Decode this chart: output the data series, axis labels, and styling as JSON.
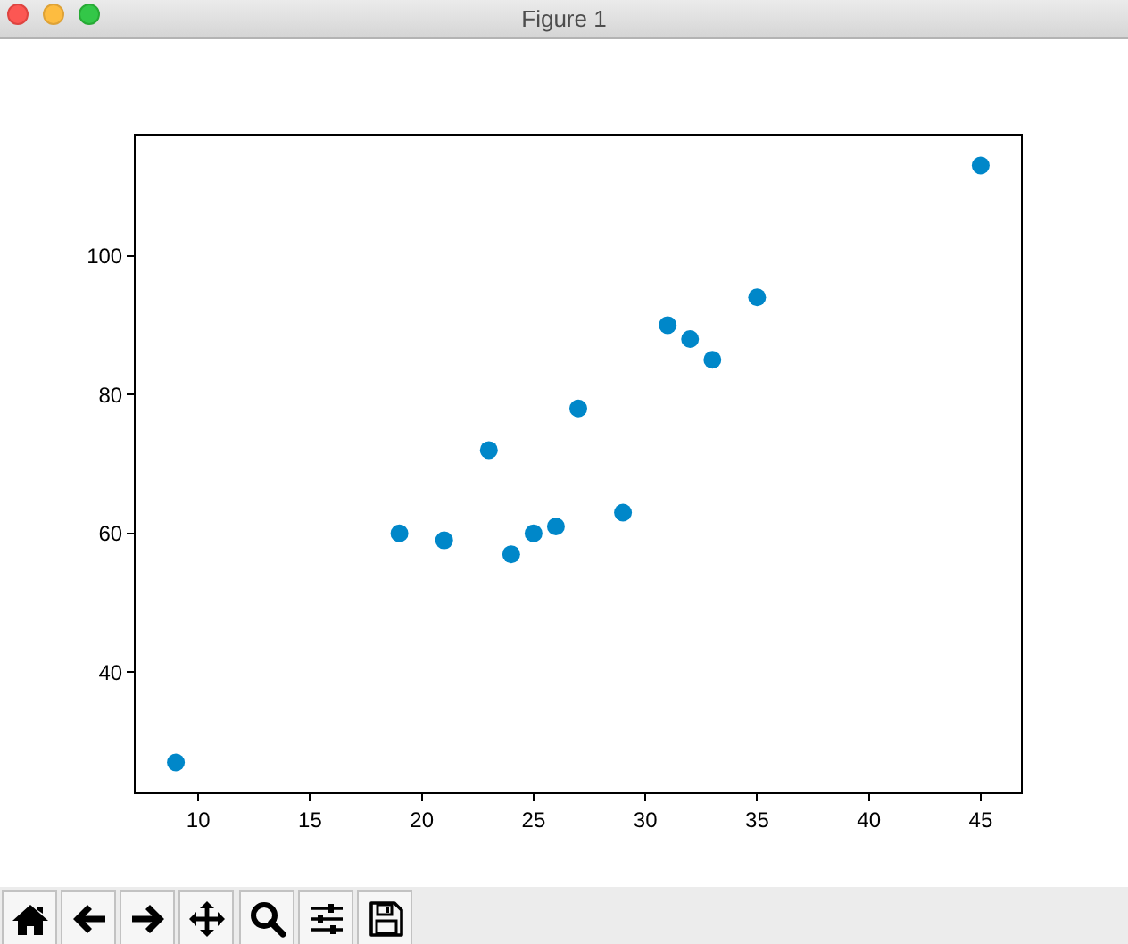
{
  "chart_data": {
    "type": "scatter",
    "title": "Figure 1",
    "x": [
      9,
      19,
      21,
      23,
      24,
      25,
      26,
      27,
      29,
      31,
      32,
      33,
      35,
      45
    ],
    "values": [
      27,
      60,
      59,
      72,
      57,
      60,
      61,
      78,
      63,
      90,
      88,
      85,
      94,
      113
    ],
    "color": "#0087c9",
    "marker": "circle",
    "xlim": [
      7.2,
      46.8
    ],
    "ylim": [
      22.7,
      117.3
    ],
    "xticks": [
      10,
      15,
      20,
      25,
      30,
      35,
      40,
      45
    ],
    "yticks": [
      40,
      60,
      80,
      100
    ]
  }
}
